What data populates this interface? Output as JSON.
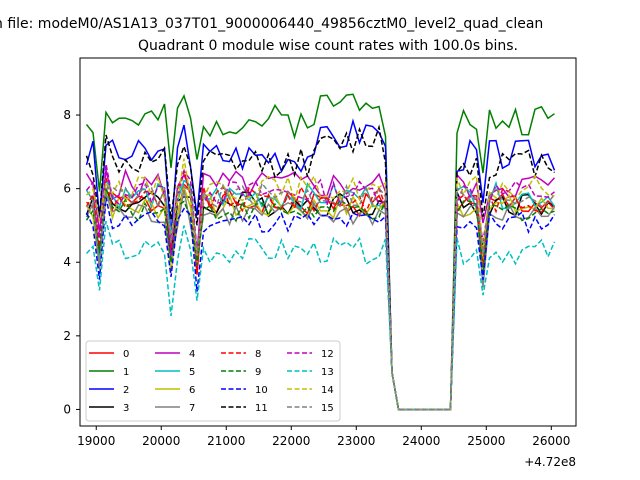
{
  "figure": {
    "suptitle": "n file: modeM0/AS1A13_037T01_9000006440_49856cztM0_level2_quad_clean",
    "offset_label": "+4.72e8"
  },
  "chart_data": {
    "type": "line",
    "title": "Quadrant 0 module wise count rates with 100.0s bins.",
    "xlabel": "",
    "ylabel": "",
    "xlim": [
      18750,
      26380
    ],
    "ylim": [
      -0.45,
      9.55
    ],
    "x_offset": 472000000,
    "xticks": [
      19000,
      20000,
      21000,
      22000,
      23000,
      24000,
      25000,
      26000
    ],
    "yticks": [
      0,
      2,
      4,
      6,
      8
    ],
    "grid": false,
    "legend": {
      "placement": "lower-left",
      "columns": 4
    },
    "series": [
      {
        "name": "0",
        "color": "#ff0000",
        "dash": "solid",
        "base": 5.6,
        "amp": 0.35,
        "seed": 1
      },
      {
        "name": "1",
        "color": "#008000",
        "dash": "solid",
        "base": 7.85,
        "amp": 0.45,
        "seed": 2
      },
      {
        "name": "2",
        "color": "#0000ff",
        "dash": "solid",
        "base": 6.9,
        "amp": 0.45,
        "seed": 3
      },
      {
        "name": "3",
        "color": "#000000",
        "dash": "solid",
        "base": 5.6,
        "amp": 0.35,
        "seed": 4
      },
      {
        "name": "4",
        "color": "#bf00bf",
        "dash": "solid",
        "base": 6.1,
        "amp": 0.4,
        "seed": 5
      },
      {
        "name": "5",
        "color": "#00bfbf",
        "dash": "solid",
        "base": 5.8,
        "amp": 0.35,
        "seed": 6
      },
      {
        "name": "6",
        "color": "#bfbf00",
        "dash": "solid",
        "base": 5.5,
        "amp": 0.35,
        "seed": 7
      },
      {
        "name": "7",
        "color": "#808080",
        "dash": "solid",
        "base": 5.3,
        "amp": 0.35,
        "seed": 8
      },
      {
        "name": "8",
        "color": "#ff0000",
        "dash": "dashed",
        "base": 5.7,
        "amp": 0.35,
        "seed": 9
      },
      {
        "name": "9",
        "color": "#008000",
        "dash": "dashed",
        "base": 5.4,
        "amp": 0.3,
        "seed": 10
      },
      {
        "name": "10",
        "color": "#0000ff",
        "dash": "dashed",
        "base": 5.1,
        "amp": 0.3,
        "seed": 11
      },
      {
        "name": "11",
        "color": "#000000",
        "dash": "dashed",
        "base": 6.7,
        "amp": 0.4,
        "seed": 12
      },
      {
        "name": "12",
        "color": "#bf00bf",
        "dash": "dashed",
        "base": 5.9,
        "amp": 0.35,
        "seed": 13
      },
      {
        "name": "13",
        "color": "#00bfbf",
        "dash": "dashed",
        "base": 4.3,
        "amp": 0.35,
        "seed": 14
      },
      {
        "name": "14",
        "color": "#bfbf00",
        "dash": "dashed",
        "base": 6.0,
        "amp": 0.35,
        "seed": 15
      },
      {
        "name": "15",
        "color": "#808080",
        "dash": "dashed",
        "base": 5.8,
        "amp": 0.35,
        "seed": 16
      }
    ]
  }
}
